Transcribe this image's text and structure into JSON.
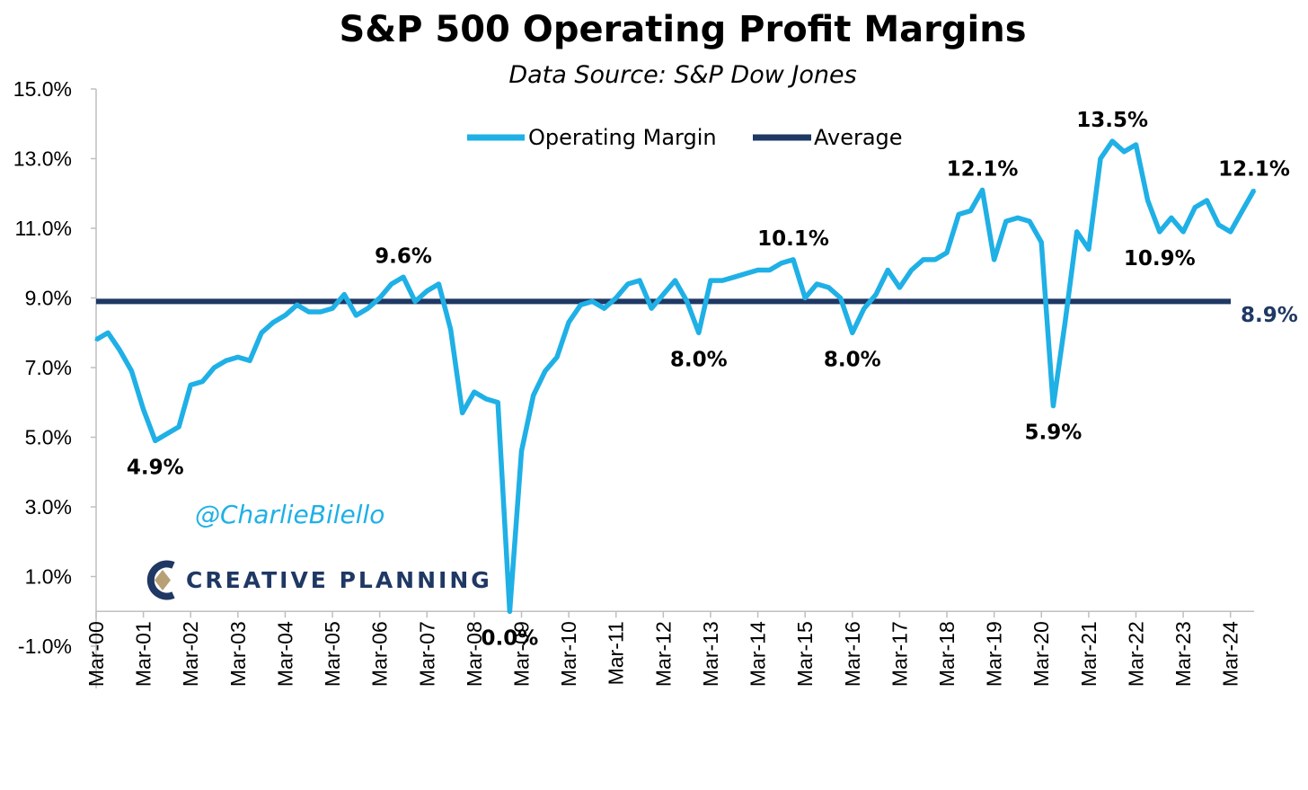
{
  "chart_data": {
    "type": "line",
    "title": "S&P 500 Operating Profit Margins",
    "subtitle": "Data Source: S&P Dow Jones",
    "xlabel": "",
    "ylabel": "",
    "ylim": [
      -1.0,
      15.0
    ],
    "yticks": [
      "15.0%",
      "13.0%",
      "11.0%",
      "9.0%",
      "7.0%",
      "5.0%",
      "3.0%",
      "1.0%",
      "-1.0%"
    ],
    "xticks": [
      "Mar-00",
      "Mar-01",
      "Mar-02",
      "Mar-03",
      "Mar-04",
      "Mar-05",
      "Mar-06",
      "Mar-07",
      "Mar-08",
      "Mar-09",
      "Mar-10",
      "Mar-11",
      "Mar-12",
      "Mar-13",
      "Mar-14",
      "Mar-15",
      "Mar-16",
      "Mar-17",
      "Mar-18",
      "Mar-19",
      "Mar-20",
      "Mar-21",
      "Mar-22",
      "Mar-23",
      "Mar-24"
    ],
    "legend_position": "top-center",
    "grid": false,
    "series": [
      {
        "name": "Operating Margin",
        "color": "#1fb0e6",
        "values": [
          7.8,
          8.0,
          7.5,
          6.9,
          5.8,
          4.9,
          5.1,
          5.3,
          6.5,
          6.6,
          7.0,
          7.2,
          7.3,
          7.2,
          8.0,
          8.3,
          8.5,
          8.8,
          8.6,
          8.6,
          8.7,
          9.1,
          8.5,
          8.7,
          9.0,
          9.4,
          9.6,
          8.9,
          9.2,
          9.4,
          8.1,
          5.7,
          6.3,
          6.1,
          6.0,
          0.0,
          4.6,
          6.2,
          6.9,
          7.3,
          8.3,
          8.8,
          8.9,
          8.7,
          9.0,
          9.4,
          9.5,
          8.7,
          9.1,
          9.5,
          8.9,
          8.0,
          9.5,
          9.5,
          9.6,
          9.7,
          9.8,
          9.8,
          10.0,
          10.1,
          9.0,
          9.4,
          9.3,
          9.0,
          8.0,
          8.7,
          9.1,
          9.8,
          9.3,
          9.8,
          10.1,
          10.1,
          10.3,
          11.4,
          11.5,
          12.1,
          10.1,
          11.2,
          11.3,
          11.2,
          10.6,
          5.9,
          8.3,
          10.9,
          10.4,
          13.0,
          13.5,
          13.2,
          13.4,
          11.8,
          10.9,
          11.3,
          10.9,
          11.6,
          11.8,
          11.1,
          10.9,
          11.5,
          12.1
        ]
      },
      {
        "name": "Average",
        "color": "#1f3864",
        "values": [
          8.9
        ]
      }
    ],
    "annotations": [
      {
        "label": "4.9%",
        "index": 5,
        "value": 4.9,
        "position": "below"
      },
      {
        "label": "9.6%",
        "index": 26,
        "value": 9.6,
        "position": "above"
      },
      {
        "label": "0.0%",
        "index": 35,
        "value": 0.0,
        "position": "below"
      },
      {
        "label": "8.0%",
        "index": 51,
        "value": 8.0,
        "position": "below"
      },
      {
        "label": "10.1%",
        "index": 59,
        "value": 10.1,
        "position": "above"
      },
      {
        "label": "8.0%",
        "index": 64,
        "value": 8.0,
        "position": "below"
      },
      {
        "label": "12.1%",
        "index": 75,
        "value": 12.1,
        "position": "above"
      },
      {
        "label": "5.9%",
        "index": 81,
        "value": 5.9,
        "position": "below"
      },
      {
        "label": "13.5%",
        "index": 86,
        "value": 13.5,
        "position": "above"
      },
      {
        "label": "10.9%",
        "index": 90,
        "value": 10.9,
        "position": "below"
      },
      {
        "label": "12.1%",
        "index": 98,
        "value": 12.1,
        "position": "above"
      }
    ],
    "average_label": "8.9%"
  },
  "watermark": {
    "handle": "@CharlieBilello",
    "handle_color": "#1fb0e6",
    "brand": "CREATIVE PLANNING",
    "brand_color": "#1f3864",
    "logo_accent": "#b8a076"
  }
}
